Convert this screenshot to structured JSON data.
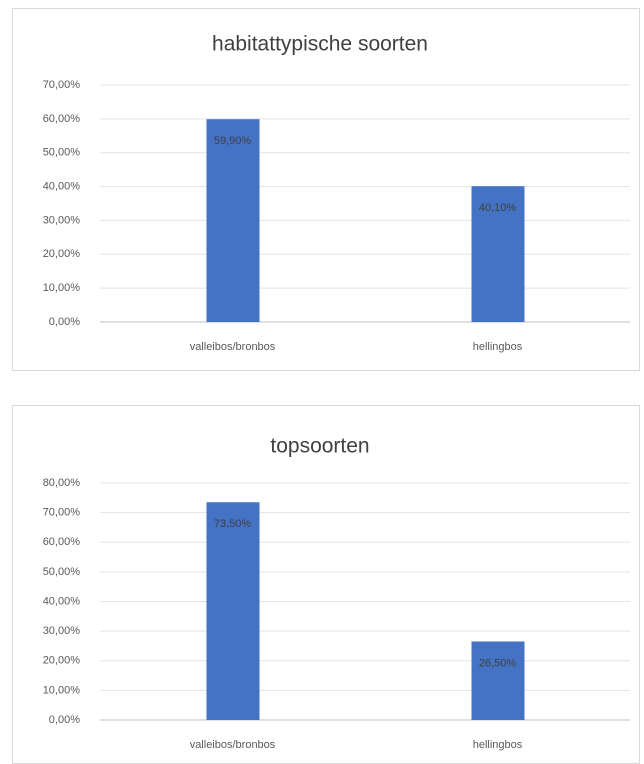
{
  "chart_data": [
    {
      "type": "bar",
      "title": "habitattypische soorten",
      "categories": [
        "valleibos/bronbos",
        "hellingbos"
      ],
      "values": [
        59.9,
        40.1
      ],
      "value_labels": [
        "59,90%",
        "40,10%"
      ],
      "color": "#4472c4",
      "ylim": [
        0,
        70
      ],
      "yticks": [
        {
          "value": 0,
          "label": "0,00%"
        },
        {
          "value": 10,
          "label": "10,00%"
        },
        {
          "value": 20,
          "label": "20,00%"
        },
        {
          "value": 30,
          "label": "30,00%"
        },
        {
          "value": 40,
          "label": "40,00%"
        },
        {
          "value": 50,
          "label": "50,00%"
        },
        {
          "value": 60,
          "label": "60,00%"
        },
        {
          "value": 70,
          "label": "70,00%"
        }
      ],
      "grid": true
    },
    {
      "type": "bar",
      "title": "topsoorten",
      "categories": [
        "valleibos/bronbos",
        "hellingbos"
      ],
      "values": [
        73.5,
        26.5
      ],
      "value_labels": [
        "73,50%",
        "26,50%"
      ],
      "color": "#4472c4",
      "ylim": [
        0,
        80
      ],
      "yticks": [
        {
          "value": 0,
          "label": "0,00%"
        },
        {
          "value": 10,
          "label": "10,00%"
        },
        {
          "value": 20,
          "label": "20,00%"
        },
        {
          "value": 30,
          "label": "30,00%"
        },
        {
          "value": 40,
          "label": "40,00%"
        },
        {
          "value": 50,
          "label": "50,00%"
        },
        {
          "value": 60,
          "label": "60,00%"
        },
        {
          "value": 70,
          "label": "70,00%"
        },
        {
          "value": 80,
          "label": "80,00%"
        }
      ],
      "grid": true
    }
  ]
}
